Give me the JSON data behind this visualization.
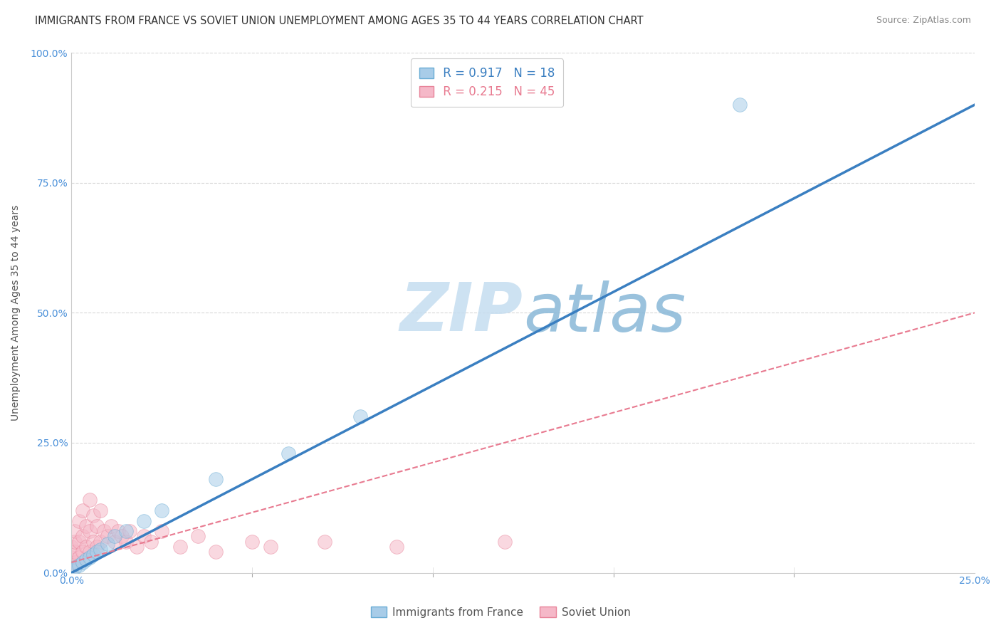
{
  "title": "IMMIGRANTS FROM FRANCE VS SOVIET UNION UNEMPLOYMENT AMONG AGES 35 TO 44 YEARS CORRELATION CHART",
  "source": "Source: ZipAtlas.com",
  "ylabel": "Unemployment Among Ages 35 to 44 years",
  "xlim": [
    0.0,
    0.25
  ],
  "ylim": [
    0.0,
    1.0
  ],
  "legend1_r": "0.917",
  "legend1_n": "18",
  "legend2_r": "0.215",
  "legend2_n": "45",
  "france_fill": "#a8cce8",
  "france_edge": "#6aadd5",
  "soviet_fill": "#f5b8c8",
  "soviet_edge": "#e8849a",
  "france_line_color": "#3a7fc1",
  "soviet_line_color": "#e87a90",
  "axis_color": "#4a90d9",
  "background_color": "#ffffff",
  "grid_color": "#d8d8d8",
  "watermark_color": "#c5ddf0",
  "france_points_x": [
    0.0,
    0.001,
    0.002,
    0.003,
    0.004,
    0.005,
    0.006,
    0.007,
    0.008,
    0.01,
    0.012,
    0.015,
    0.02,
    0.025,
    0.04,
    0.06,
    0.08,
    0.185
  ],
  "france_points_y": [
    0.005,
    0.01,
    0.015,
    0.02,
    0.025,
    0.03,
    0.035,
    0.04,
    0.045,
    0.055,
    0.07,
    0.08,
    0.1,
    0.12,
    0.18,
    0.23,
    0.3,
    0.9
  ],
  "soviet_points_x": [
    0.0,
    0.0,
    0.0,
    0.0,
    0.001,
    0.001,
    0.001,
    0.001,
    0.002,
    0.002,
    0.002,
    0.003,
    0.003,
    0.003,
    0.004,
    0.004,
    0.005,
    0.005,
    0.005,
    0.006,
    0.006,
    0.007,
    0.007,
    0.008,
    0.008,
    0.009,
    0.01,
    0.011,
    0.012,
    0.013,
    0.014,
    0.015,
    0.016,
    0.018,
    0.02,
    0.022,
    0.025,
    0.03,
    0.035,
    0.04,
    0.05,
    0.055,
    0.07,
    0.09,
    0.12
  ],
  "soviet_points_y": [
    0.01,
    0.02,
    0.03,
    0.05,
    0.02,
    0.04,
    0.06,
    0.08,
    0.03,
    0.06,
    0.1,
    0.04,
    0.07,
    0.12,
    0.05,
    0.09,
    0.04,
    0.08,
    0.14,
    0.06,
    0.11,
    0.05,
    0.09,
    0.06,
    0.12,
    0.08,
    0.07,
    0.09,
    0.06,
    0.08,
    0.07,
    0.06,
    0.08,
    0.05,
    0.07,
    0.06,
    0.08,
    0.05,
    0.07,
    0.04,
    0.06,
    0.05,
    0.06,
    0.05,
    0.06
  ],
  "france_line_x0": 0.0,
  "france_line_y0": 0.0,
  "france_line_x1": 0.25,
  "france_line_y1": 0.9,
  "soviet_line_x0": 0.0,
  "soviet_line_y0": 0.02,
  "soviet_line_x1": 0.25,
  "soviet_line_y1": 0.5,
  "title_fontsize": 10.5,
  "source_fontsize": 9,
  "axis_label_fontsize": 10,
  "tick_fontsize": 10,
  "legend_fontsize": 12,
  "marker_size": 200,
  "marker_alpha": 0.55,
  "watermark_fontsize": 68
}
